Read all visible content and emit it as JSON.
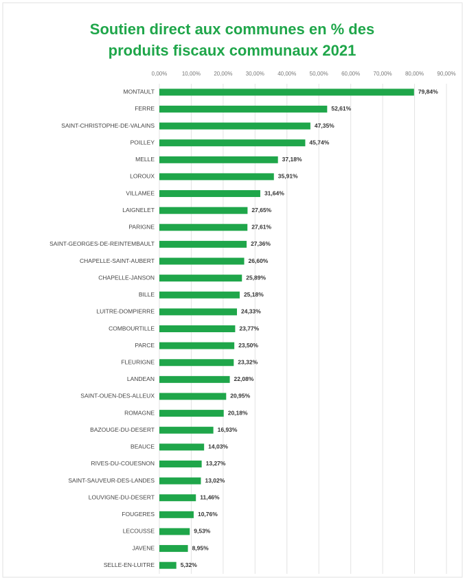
{
  "chart_data": {
    "type": "bar",
    "orientation": "horizontal",
    "title": [
      "Soutien direct aux communes en % des",
      "produits fiscaux communaux 2021"
    ],
    "categories": [
      "MONTAULT",
      "FERRE",
      "SAINT-CHRISTOPHE-DE-VALAINS",
      "POILLEY",
      "MELLE",
      "LOROUX",
      "VILLAMEE",
      "LAIGNELET",
      "PARIGNE",
      "SAINT-GEORGES-DE-REINTEMBAULT",
      "CHAPELLE-SAINT-AUBERT",
      "CHAPELLE-JANSON",
      "BILLE",
      "LUITRE-DOMPIERRE",
      "COMBOURTILLE",
      "PARCE",
      "FLEURIGNE",
      "LANDEAN",
      "SAINT-OUEN-DES-ALLEUX",
      "ROMAGNE",
      "BAZOUGE-DU-DESERT",
      "BEAUCE",
      "RIVES-DU-COUESNON",
      "SAINT-SAUVEUR-DES-LANDES",
      "LOUVIGNE-DU-DESERT",
      "FOUGERES",
      "LECOUSSE",
      "JAVENE",
      "SELLE-EN-LUITRE"
    ],
    "values": [
      79.84,
      52.61,
      47.35,
      45.74,
      37.18,
      35.91,
      31.64,
      27.65,
      27.61,
      27.36,
      26.6,
      25.89,
      25.18,
      24.33,
      23.77,
      23.5,
      23.32,
      22.08,
      20.95,
      20.18,
      16.93,
      14.03,
      13.27,
      13.02,
      11.46,
      10.76,
      9.53,
      8.95,
      5.32
    ],
    "value_labels": [
      "79,84%",
      "52,61%",
      "47,35%",
      "45,74%",
      "37,18%",
      "35,91%",
      "31,64%",
      "27,65%",
      "27,61%",
      "27,36%",
      "26,60%",
      "25,89%",
      "25,18%",
      "24,33%",
      "23,77%",
      "23,50%",
      "23,32%",
      "22,08%",
      "20,95%",
      "20,18%",
      "16,93%",
      "14,03%",
      "13,27%",
      "13,02%",
      "11,46%",
      "10,76%",
      "9,53%",
      "8,95%",
      "5,32%"
    ],
    "color": "#1fa64a",
    "xlim": [
      0,
      90
    ],
    "xticks": [
      {
        "value": 0,
        "label": "0,00%"
      },
      {
        "value": 10,
        "label": "10,00%"
      },
      {
        "value": 20,
        "label": "20,00%"
      },
      {
        "value": 30,
        "label": "30,00%"
      },
      {
        "value": 40,
        "label": "40,00%"
      },
      {
        "value": 50,
        "label": "50,00%"
      },
      {
        "value": 60,
        "label": "60,00%"
      },
      {
        "value": 70,
        "label": "70,00%"
      },
      {
        "value": 80,
        "label": "80,00%"
      },
      {
        "value": 90,
        "label": "90,00%"
      }
    ],
    "grid": true
  }
}
